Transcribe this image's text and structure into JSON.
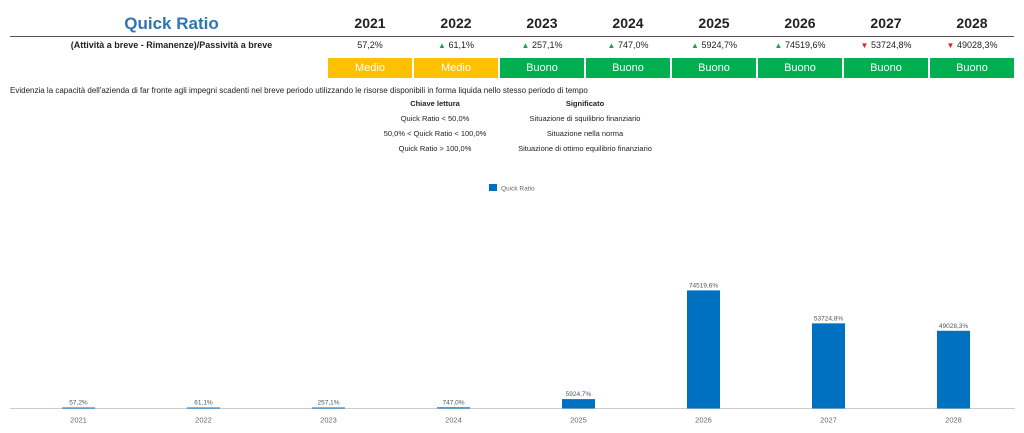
{
  "header": {
    "title": "Quick Ratio",
    "years": [
      "2021",
      "2022",
      "2023",
      "2024",
      "2025",
      "2026",
      "2027",
      "2028"
    ]
  },
  "row": {
    "formula": "(Attività a breve - Rimanenze)/Passività a breve",
    "values": [
      {
        "text": "57,2%",
        "trend": ""
      },
      {
        "text": "61,1%",
        "trend": "up"
      },
      {
        "text": "257,1%",
        "trend": "up"
      },
      {
        "text": "747,0%",
        "trend": "up"
      },
      {
        "text": "5924,7%",
        "trend": "up"
      },
      {
        "text": "74519,6%",
        "trend": "up"
      },
      {
        "text": "53724,8%",
        "trend": "down"
      },
      {
        "text": "49028,3%",
        "trend": "down"
      }
    ],
    "ratings": [
      "Medio",
      "Medio",
      "Buono",
      "Buono",
      "Buono",
      "Buono",
      "Buono",
      "Buono"
    ]
  },
  "colors": {
    "medio": "#ffc000",
    "buono": "#00b050",
    "title": "#2e75b6",
    "bar": "#0070c0",
    "up": "#1ea34a",
    "down": "#d62828"
  },
  "icons": {
    "up": "triangle-up-icon",
    "down": "triangle-down-icon"
  },
  "description": "Evidenzia la capacità dell'azienda di far fronte agli impegni scadenti nel breve periodo utilizzando le risorse disponibili in forma liquida nello stesso periodo di tempo",
  "legend_table": {
    "col1_header": "Chiave lettura",
    "col2_header": "Significato",
    "rows": [
      {
        "key": "Quick Ratio < 50,0%",
        "meaning": "Situazione di squilibrio finanziario"
      },
      {
        "key": "50,0% < Quick Ratio < 100,0%",
        "meaning": "Situazione nella norma"
      },
      {
        "key": "Quick Ratio > 100,0%",
        "meaning": "Situazione di ottimo equilibrio finanziario"
      }
    ]
  },
  "chart_data": {
    "type": "bar",
    "categories": [
      "2021",
      "2022",
      "2023",
      "2024",
      "2025",
      "2026",
      "2027",
      "2028"
    ],
    "series": [
      {
        "name": "Quick Ratio",
        "values": [
          57.2,
          61.1,
          257.1,
          747.0,
          5924.7,
          74519.6,
          53724.8,
          49028.3
        ],
        "labels": [
          "57,2%",
          "61,1%",
          "257,1%",
          "747,0%",
          "5924,7%",
          "74519,6%",
          "53724,8%",
          "49028,3%"
        ]
      }
    ],
    "ylim": [
      0,
      100000
    ],
    "grid": false,
    "legend": "top-center"
  }
}
